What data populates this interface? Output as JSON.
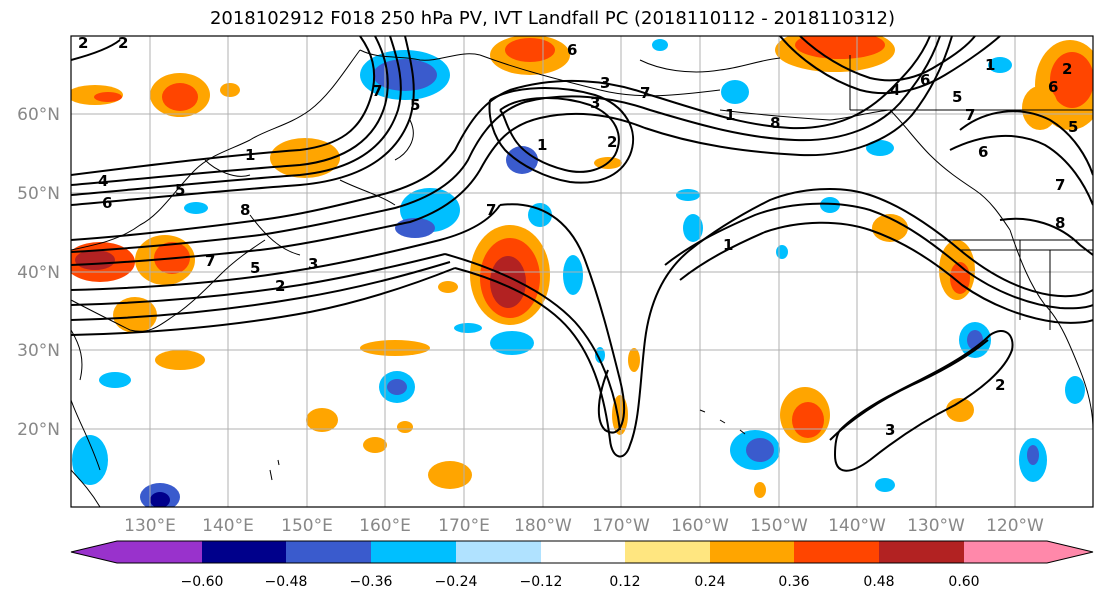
{
  "title": "2018102912 F018 250 hPa PV, IVT Landfall PC (2018110112 - 2018110312)",
  "axes": {
    "longitude_labels": [
      "130°E",
      "140°E",
      "150°E",
      "160°E",
      "170°E",
      "180°W",
      "170°W",
      "160°W",
      "150°W",
      "140°W",
      "130°W",
      "120°W"
    ],
    "latitude_labels": [
      "60°N",
      "50°N",
      "40°N",
      "30°N",
      "20°N"
    ]
  },
  "colorbar": {
    "ticks": [
      "−0.60",
      "−0.48",
      "−0.36",
      "−0.24",
      "−0.12",
      "0.12",
      "0.24",
      "0.36",
      "0.48",
      "0.60"
    ],
    "colors": [
      "#9932cc",
      "#00008b",
      "#3a5bcd",
      "#00bfff",
      "#b0e2ff",
      "#ffffff",
      "#ffe680",
      "#ffa500",
      "#ff4500",
      "#b22222",
      "#ff88aa"
    ],
    "extend": "both"
  },
  "contour_labels": [
    "2",
    "4",
    "6",
    "1",
    "5",
    "7",
    "2",
    "3",
    "5",
    "7",
    "6",
    "1",
    "2",
    "3",
    "7",
    "8",
    "1",
    "2",
    "3",
    "4",
    "5",
    "6",
    "7",
    "8",
    "1",
    "6",
    "7",
    "8",
    "6",
    "7",
    "1",
    "5",
    "2",
    "2",
    "3",
    "5"
  ],
  "colors": {
    "grid": "#b0b0b0",
    "contour": "#000000",
    "coast": "#000000"
  }
}
